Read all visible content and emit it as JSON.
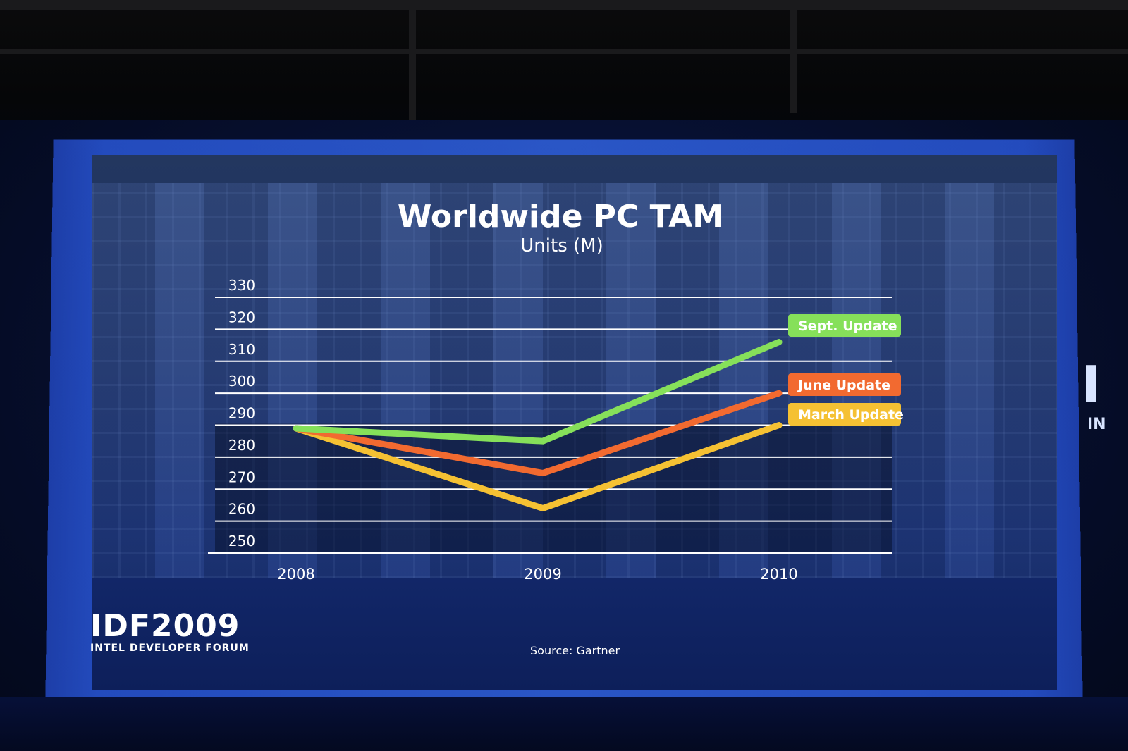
{
  "slide": {
    "event_logo": "IDF2009",
    "event_tagline": "INTEL DEVELOPER FORUM",
    "source": "Source: Gartner"
  },
  "side_screen": {
    "big": "I",
    "small": "IN"
  },
  "colors": {
    "sept": "#86e05a",
    "june": "#f26a30",
    "march": "#f5c133",
    "text": "#ffffff"
  },
  "chart_data": {
    "type": "line",
    "title": "Worldwide PC TAM",
    "subtitle": "Units (M)",
    "x": [
      "2008",
      "2009",
      "2010"
    ],
    "y_ticks": [
      250,
      260,
      270,
      280,
      290,
      300,
      310,
      320,
      330
    ],
    "ylim": [
      250,
      330
    ],
    "grid": true,
    "series": [
      {
        "name": "March Update",
        "values": [
          289,
          264,
          290
        ],
        "color": "#f5c133"
      },
      {
        "name": "June Update",
        "values": [
          289,
          275,
          300
        ],
        "color": "#f26a30"
      },
      {
        "name": "Sept. Update",
        "values": [
          289,
          285,
          316
        ],
        "color": "#86e05a"
      }
    ]
  }
}
